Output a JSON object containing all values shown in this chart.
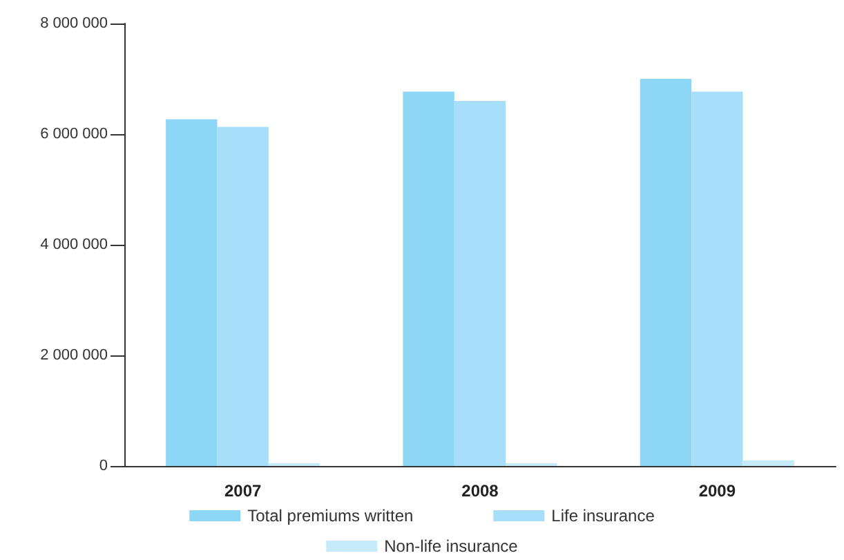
{
  "chart_data": {
    "type": "bar",
    "categories": [
      "2007",
      "2008",
      "2009"
    ],
    "series": [
      {
        "name": "Total premiums written",
        "color": "#8dd6f5",
        "values": [
          6270000,
          6770000,
          7000000
        ]
      },
      {
        "name": "Life insurance",
        "color": "#a8dff8",
        "values": [
          6130000,
          6600000,
          6770000
        ]
      },
      {
        "name": "Non-life insurance",
        "color": "#c5eafa",
        "values": [
          50000,
          50000,
          100000
        ]
      }
    ],
    "ylim": [
      0,
      8000000
    ],
    "yticks": [
      {
        "value": 0,
        "label": "0"
      },
      {
        "value": 2000000,
        "label": "2 000 000"
      },
      {
        "value": 4000000,
        "label": "4 000 000"
      },
      {
        "value": 6000000,
        "label": "6 000 000"
      },
      {
        "value": 8000000,
        "label": "8 000 000"
      }
    ],
    "grid": false,
    "legend": "bottom left"
  }
}
